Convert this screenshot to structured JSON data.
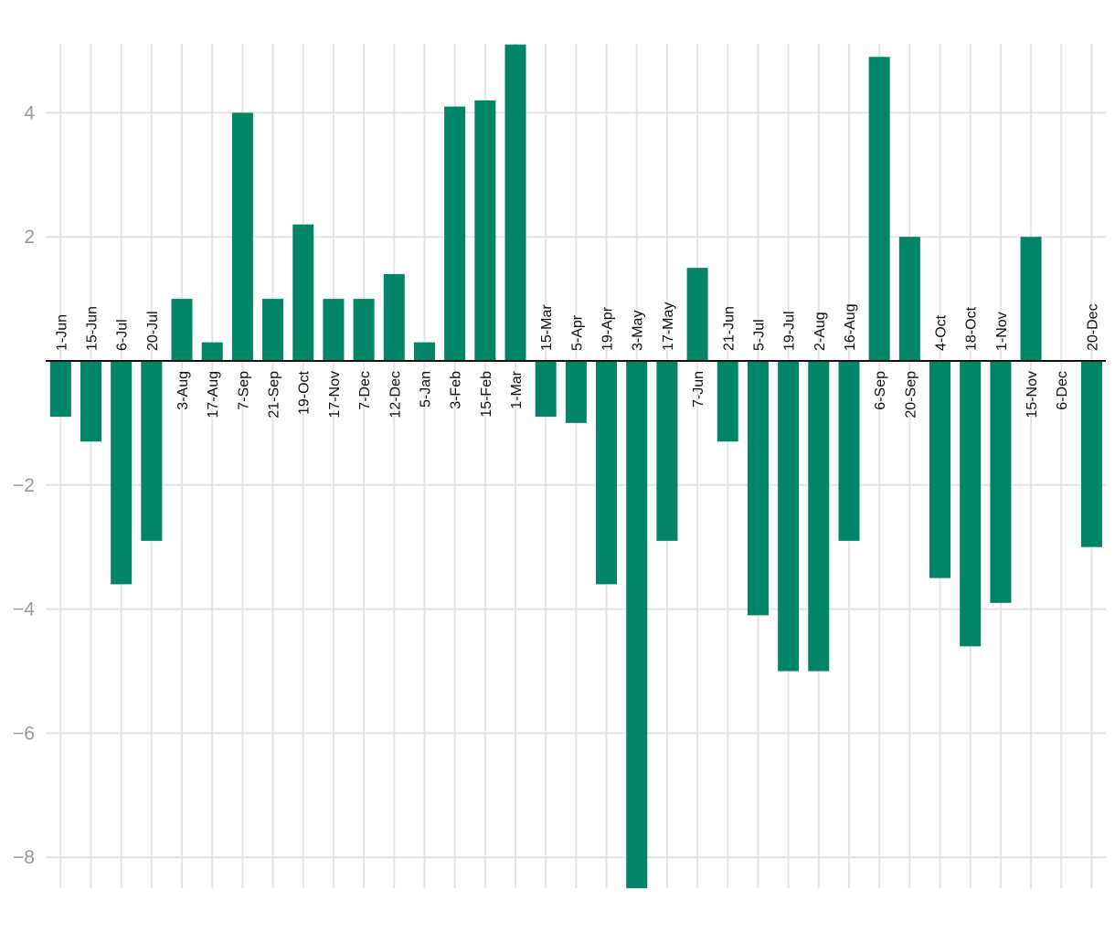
{
  "chart_data": {
    "type": "bar",
    "title": "",
    "xlabel": "",
    "ylabel": "",
    "ylim": [
      -8.5,
      5.1
    ],
    "yticks": [
      4,
      2,
      -2,
      -4,
      -6,
      -8
    ],
    "ytick_labels": [
      "4",
      "2",
      "−2",
      "−4",
      "−6",
      "−8"
    ],
    "bar_color": "#008566",
    "grid_color": "#e5e5e5",
    "axis_color": "#111111",
    "categories": [
      "1-Jun",
      "15-Jun",
      "6-Jul",
      "20-Jul",
      "3-Aug",
      "17-Aug",
      "7-Sep",
      "21-Sep",
      "19-Oct",
      "17-Nov",
      "7-Dec",
      "12-Dec",
      "5-Jan",
      "3-Feb",
      "15-Feb",
      "1-Mar",
      "15-Mar",
      "5-Apr",
      "19-Apr",
      "3-May",
      "17-May",
      "7-Jun",
      "21-Jun",
      "5-Jul",
      "19-Jul",
      "2-Aug",
      "16-Aug",
      "6-Sep",
      "20-Sep",
      "4-Oct",
      "18-Oct",
      "1-Nov",
      "15-Nov",
      "6-Dec",
      "20-Dec"
    ],
    "values": [
      -0.9,
      -1.3,
      -3.6,
      -2.9,
      1.0,
      0.3,
      4.0,
      1.0,
      2.2,
      1.0,
      1.0,
      1.4,
      0.3,
      4.1,
      4.2,
      5.1,
      -0.9,
      -1.0,
      -3.6,
      -8.5,
      -2.9,
      1.5,
      -1.3,
      -4.1,
      -5.0,
      -5.0,
      -2.9,
      4.9,
      2.0,
      -3.5,
      -4.6,
      -3.9,
      2.0,
      0.0,
      -3.0
    ]
  }
}
